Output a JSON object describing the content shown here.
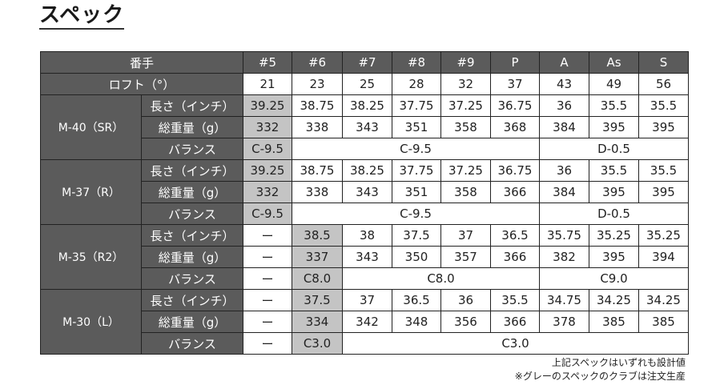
{
  "title": "スペック",
  "table": {
    "header_label": "番手",
    "clubs": [
      "#5",
      "#6",
      "#7",
      "#8",
      "#9",
      "P",
      "A",
      "As",
      "S"
    ],
    "loft_label": "ロフト（°）",
    "lofts": [
      "21",
      "23",
      "25",
      "28",
      "32",
      "37",
      "43",
      "49",
      "56"
    ],
    "colors": {
      "header_bg": "#5b5b5b",
      "gray_cell": "#c4c4c4"
    },
    "groups": [
      {
        "name": "M-40（SR）",
        "rows": [
          {
            "label": "長さ（インチ）",
            "cells": [
              {
                "v": "39.25",
                "span": 1,
                "gray": true
              },
              {
                "v": "38.75",
                "span": 1
              },
              {
                "v": "38.25",
                "span": 1
              },
              {
                "v": "37.75",
                "span": 1
              },
              {
                "v": "37.25",
                "span": 1
              },
              {
                "v": "36.75",
                "span": 1
              },
              {
                "v": "36",
                "span": 1
              },
              {
                "v": "35.5",
                "span": 1
              },
              {
                "v": "35.5",
                "span": 1
              }
            ]
          },
          {
            "label": "総重量（g）",
            "cells": [
              {
                "v": "332",
                "span": 1,
                "gray": true
              },
              {
                "v": "338",
                "span": 1
              },
              {
                "v": "343",
                "span": 1
              },
              {
                "v": "351",
                "span": 1
              },
              {
                "v": "358",
                "span": 1
              },
              {
                "v": "368",
                "span": 1
              },
              {
                "v": "384",
                "span": 1
              },
              {
                "v": "395",
                "span": 1
              },
              {
                "v": "395",
                "span": 1
              }
            ]
          },
          {
            "label": "バランス",
            "cells": [
              {
                "v": "C-9.5",
                "span": 1,
                "gray": true
              },
              {
                "v": "C-9.5",
                "span": 5
              },
              {
                "v": "D-0.5",
                "span": 3
              }
            ]
          }
        ]
      },
      {
        "name": "M-37（R）",
        "rows": [
          {
            "label": "長さ（インチ）",
            "cells": [
              {
                "v": "39.25",
                "span": 1,
                "gray": true
              },
              {
                "v": "38.75",
                "span": 1
              },
              {
                "v": "38.25",
                "span": 1
              },
              {
                "v": "37.75",
                "span": 1
              },
              {
                "v": "37.25",
                "span": 1
              },
              {
                "v": "36.75",
                "span": 1
              },
              {
                "v": "36",
                "span": 1
              },
              {
                "v": "35.5",
                "span": 1
              },
              {
                "v": "35.5",
                "span": 1
              }
            ]
          },
          {
            "label": "総重量（g）",
            "cells": [
              {
                "v": "332",
                "span": 1,
                "gray": true
              },
              {
                "v": "338",
                "span": 1
              },
              {
                "v": "343",
                "span": 1
              },
              {
                "v": "351",
                "span": 1
              },
              {
                "v": "358",
                "span": 1
              },
              {
                "v": "366",
                "span": 1
              },
              {
                "v": "384",
                "span": 1
              },
              {
                "v": "395",
                "span": 1
              },
              {
                "v": "395",
                "span": 1
              }
            ]
          },
          {
            "label": "バランス",
            "cells": [
              {
                "v": "C-9.5",
                "span": 1,
                "gray": true
              },
              {
                "v": "C-9.5",
                "span": 5
              },
              {
                "v": "D-0.5",
                "span": 3
              }
            ]
          }
        ]
      },
      {
        "name": "M-35（R2）",
        "rows": [
          {
            "label": "長さ（インチ）",
            "cells": [
              {
                "v": "ー",
                "span": 1
              },
              {
                "v": "38.5",
                "span": 1,
                "gray": true
              },
              {
                "v": "38",
                "span": 1
              },
              {
                "v": "37.5",
                "span": 1
              },
              {
                "v": "37",
                "span": 1
              },
              {
                "v": "36.5",
                "span": 1
              },
              {
                "v": "35.75",
                "span": 1
              },
              {
                "v": "35.25",
                "span": 1
              },
              {
                "v": "35.25",
                "span": 1
              }
            ]
          },
          {
            "label": "総重量（g）",
            "cells": [
              {
                "v": "ー",
                "span": 1
              },
              {
                "v": "337",
                "span": 1,
                "gray": true
              },
              {
                "v": "343",
                "span": 1
              },
              {
                "v": "350",
                "span": 1
              },
              {
                "v": "357",
                "span": 1
              },
              {
                "v": "366",
                "span": 1
              },
              {
                "v": "382",
                "span": 1
              },
              {
                "v": "395",
                "span": 1
              },
              {
                "v": "394",
                "span": 1
              }
            ]
          },
          {
            "label": "バランス",
            "cells": [
              {
                "v": "ー",
                "span": 1
              },
              {
                "v": "C8.0",
                "span": 1,
                "gray": true
              },
              {
                "v": "C8.0",
                "span": 4
              },
              {
                "v": "C9.0",
                "span": 3
              }
            ]
          }
        ]
      },
      {
        "name": "M-30（L）",
        "rows": [
          {
            "label": "長さ（インチ）",
            "cells": [
              {
                "v": "ー",
                "span": 1
              },
              {
                "v": "37.5",
                "span": 1,
                "gray": true
              },
              {
                "v": "37",
                "span": 1
              },
              {
                "v": "36.5",
                "span": 1
              },
              {
                "v": "36",
                "span": 1
              },
              {
                "v": "35.5",
                "span": 1
              },
              {
                "v": "34.75",
                "span": 1
              },
              {
                "v": "34.25",
                "span": 1
              },
              {
                "v": "34.25",
                "span": 1
              }
            ]
          },
          {
            "label": "総重量（g）",
            "cells": [
              {
                "v": "ー",
                "span": 1
              },
              {
                "v": "334",
                "span": 1,
                "gray": true
              },
              {
                "v": "342",
                "span": 1
              },
              {
                "v": "348",
                "span": 1
              },
              {
                "v": "356",
                "span": 1
              },
              {
                "v": "366",
                "span": 1
              },
              {
                "v": "378",
                "span": 1
              },
              {
                "v": "385",
                "span": 1
              },
              {
                "v": "385",
                "span": 1
              }
            ]
          },
          {
            "label": "バランス",
            "cells": [
              {
                "v": "ー",
                "span": 1
              },
              {
                "v": "C3.0",
                "span": 1,
                "gray": true
              },
              {
                "v": "C3.0",
                "span": 7
              }
            ]
          }
        ]
      }
    ]
  },
  "notes": [
    "上記スペックはいずれも設計値",
    "※グレーのスペックのクラブは注文生産"
  ]
}
